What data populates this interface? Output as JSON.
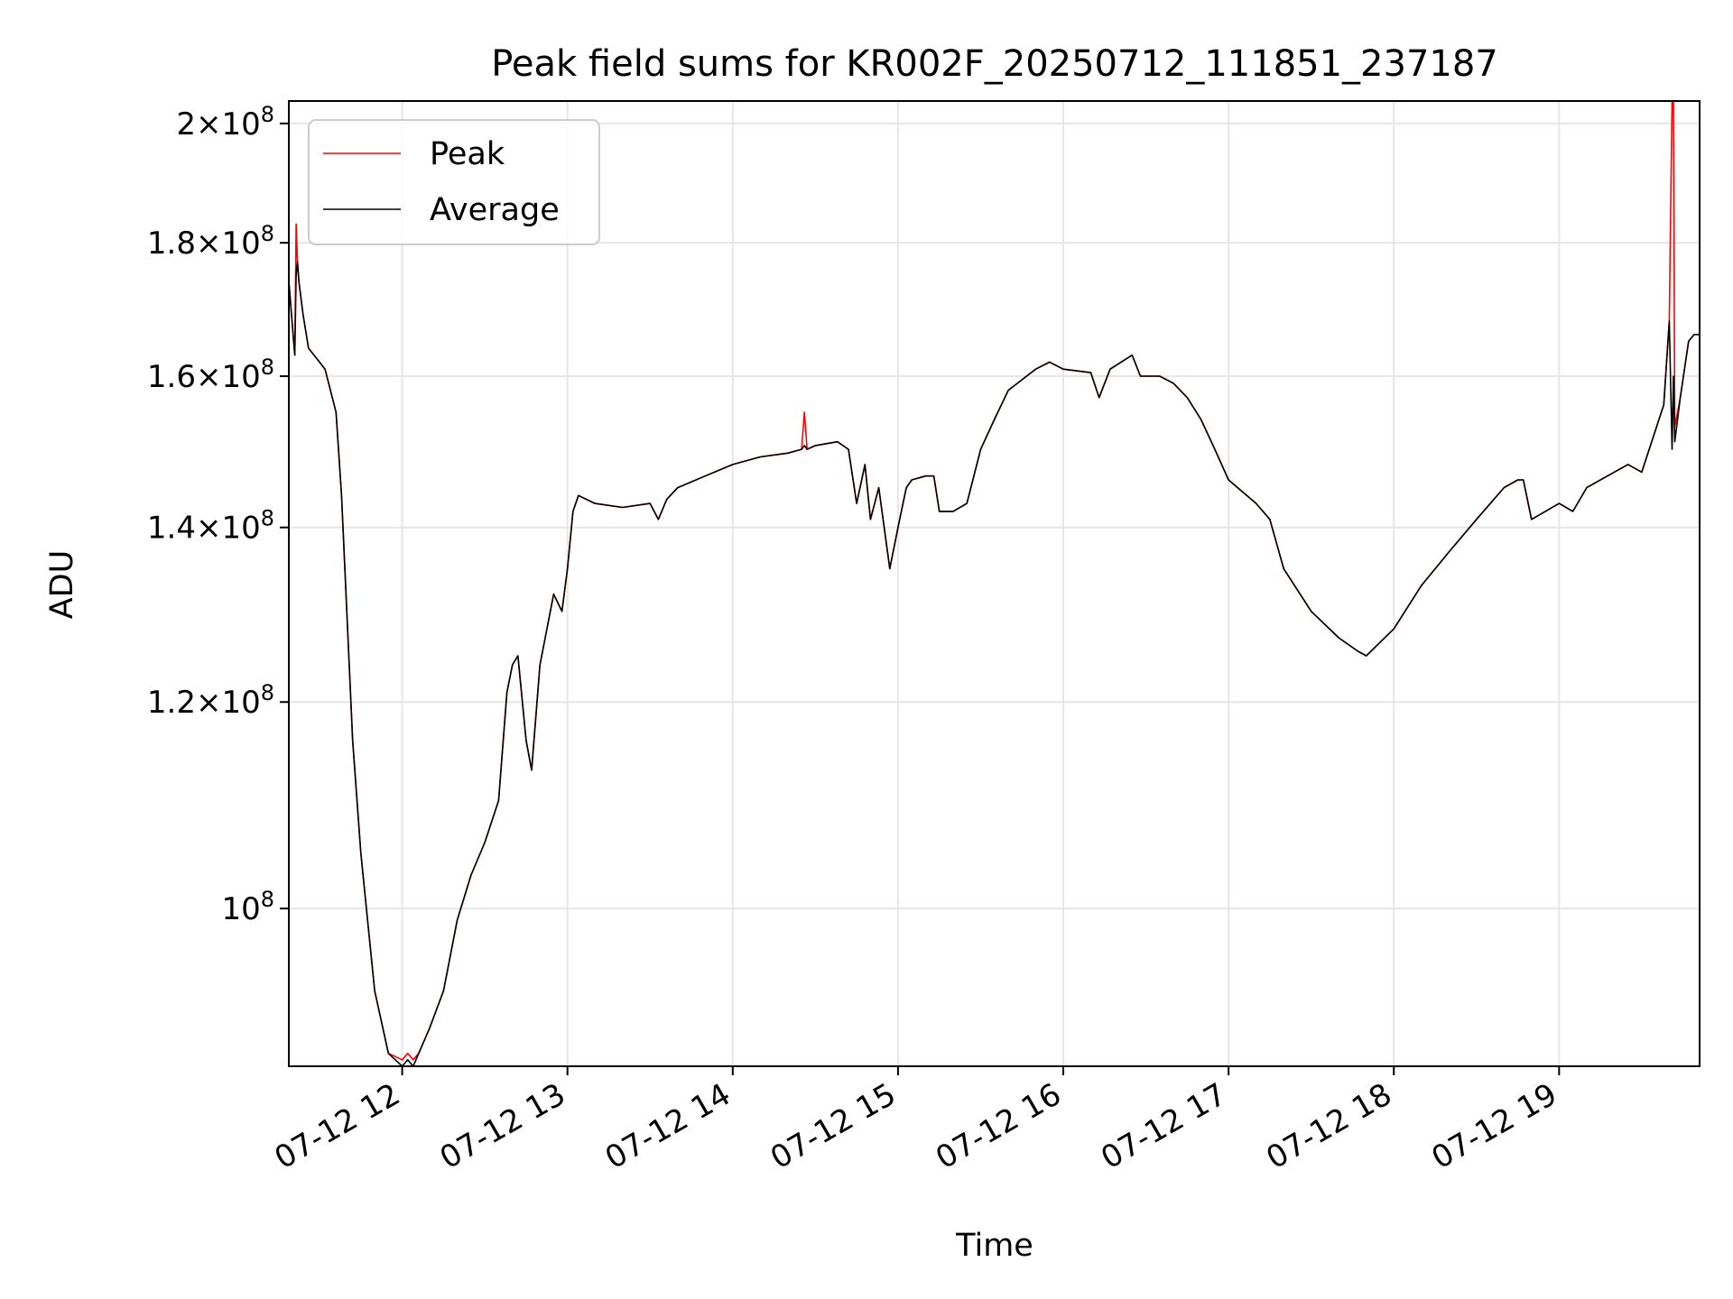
{
  "chart_data": {
    "type": "line",
    "title": "Peak field sums for KR002F_20250712_111851_237187",
    "xlabel": "Time",
    "ylabel": "ADU",
    "yscale": "log",
    "grid": true,
    "legend_placement": "upper-left",
    "xlim": [
      "2025-07-12T11:18:51",
      "2025-07-12T19:51:00"
    ],
    "ylim": [
      87000000,
      204000000
    ],
    "x_ticks": [
      {
        "value": "2025-07-12T12:00",
        "label": "07-12 12"
      },
      {
        "value": "2025-07-12T13:00",
        "label": "07-12 13"
      },
      {
        "value": "2025-07-12T14:00",
        "label": "07-12 14"
      },
      {
        "value": "2025-07-12T15:00",
        "label": "07-12 15"
      },
      {
        "value": "2025-07-12T16:00",
        "label": "07-12 16"
      },
      {
        "value": "2025-07-12T17:00",
        "label": "07-12 17"
      },
      {
        "value": "2025-07-12T18:00",
        "label": "07-12 18"
      },
      {
        "value": "2025-07-12T19:00",
        "label": "07-12 19"
      }
    ],
    "y_ticks": [
      {
        "value": 100000000,
        "mantissa": "",
        "exponent": "8"
      },
      {
        "value": 120000000,
        "mantissa": "1.2",
        "exponent": "8"
      },
      {
        "value": 140000000,
        "mantissa": "1.4",
        "exponent": "8"
      },
      {
        "value": 160000000,
        "mantissa": "1.6",
        "exponent": "8"
      },
      {
        "value": 180000000,
        "mantissa": "1.8",
        "exponent": "8"
      },
      {
        "value": 200000000,
        "mantissa": "2",
        "exponent": "8"
      }
    ],
    "series": [
      {
        "name": "Peak",
        "color": "#ff0000",
        "x": [
          "2025-07-12T11:18:51",
          "2025-07-12T11:20:00",
          "2025-07-12T11:21:00",
          "2025-07-12T11:21:30",
          "2025-07-12T11:22:00",
          "2025-07-12T11:22:30",
          "2025-07-12T11:24:00",
          "2025-07-12T11:26:00",
          "2025-07-12T11:30:00",
          "2025-07-12T11:32:00",
          "2025-07-12T11:36:00",
          "2025-07-12T11:38:00",
          "2025-07-12T11:42:00",
          "2025-07-12T11:45:00",
          "2025-07-12T11:50:00",
          "2025-07-12T11:55:00",
          "2025-07-12T12:00:00",
          "2025-07-12T12:02:00",
          "2025-07-12T12:04:00",
          "2025-07-12T12:06:00",
          "2025-07-12T12:10:00",
          "2025-07-12T12:15:00",
          "2025-07-12T12:20:00",
          "2025-07-12T12:25:00",
          "2025-07-12T12:30:00",
          "2025-07-12T12:35:00",
          "2025-07-12T12:38:00",
          "2025-07-12T12:40:00",
          "2025-07-12T12:42:00",
          "2025-07-12T12:45:00",
          "2025-07-12T12:47:00",
          "2025-07-12T12:50:00",
          "2025-07-12T12:55:00",
          "2025-07-12T12:58:00",
          "2025-07-12T13:00:00",
          "2025-07-12T13:02:00",
          "2025-07-12T13:04:00",
          "2025-07-12T13:10:00",
          "2025-07-12T13:20:00",
          "2025-07-12T13:30:00",
          "2025-07-12T13:33:00",
          "2025-07-12T13:36:00",
          "2025-07-12T13:40:00",
          "2025-07-12T13:50:00",
          "2025-07-12T14:00:00",
          "2025-07-12T14:10:00",
          "2025-07-12T14:20:00",
          "2025-07-12T14:25:00",
          "2025-07-12T14:26:00",
          "2025-07-12T14:27:00",
          "2025-07-12T14:30:00",
          "2025-07-12T14:38:00",
          "2025-07-12T14:42:00",
          "2025-07-12T14:45:00",
          "2025-07-12T14:48:00",
          "2025-07-12T14:50:00",
          "2025-07-12T14:53:00",
          "2025-07-12T14:57:00",
          "2025-07-12T15:00:00",
          "2025-07-12T15:03:00",
          "2025-07-12T15:05:00",
          "2025-07-12T15:10:00",
          "2025-07-12T15:13:00",
          "2025-07-12T15:15:00",
          "2025-07-12T15:20:00",
          "2025-07-12T15:25:00",
          "2025-07-12T15:30:00",
          "2025-07-12T15:35:00",
          "2025-07-12T15:40:00",
          "2025-07-12T15:50:00",
          "2025-07-12T15:55:00",
          "2025-07-12T16:00:00",
          "2025-07-12T16:10:00",
          "2025-07-12T16:13:00",
          "2025-07-12T16:17:00",
          "2025-07-12T16:25:00",
          "2025-07-12T16:28:00",
          "2025-07-12T16:35:00",
          "2025-07-12T16:40:00",
          "2025-07-12T16:45:00",
          "2025-07-12T16:50:00",
          "2025-07-12T16:55:00",
          "2025-07-12T17:00:00",
          "2025-07-12T17:10:00",
          "2025-07-12T17:15:00",
          "2025-07-12T17:20:00",
          "2025-07-12T17:30:00",
          "2025-07-12T17:40:00",
          "2025-07-12T17:47:00",
          "2025-07-12T17:50:00",
          "2025-07-12T18:00:00",
          "2025-07-12T18:10:00",
          "2025-07-12T18:20:00",
          "2025-07-12T18:30:00",
          "2025-07-12T18:40:00",
          "2025-07-12T18:45:00",
          "2025-07-12T18:47:00",
          "2025-07-12T18:50:00",
          "2025-07-12T19:00:00",
          "2025-07-12T19:05:00",
          "2025-07-12T19:10:00",
          "2025-07-12T19:20:00",
          "2025-07-12T19:25:00",
          "2025-07-12T19:30:00",
          "2025-07-12T19:38:00",
          "2025-07-12T19:40:00",
          "2025-07-12T19:41:00",
          "2025-07-12T19:41:30",
          "2025-07-12T19:42:00",
          "2025-07-12T19:44:00",
          "2025-07-12T19:47:00",
          "2025-07-12T19:49:00",
          "2025-07-12T19:51:00"
        ],
        "y": [
          174000000,
          168000000,
          163000000,
          183000000,
          177000000,
          174000000,
          169000000,
          164000000,
          162000000,
          161000000,
          155000000,
          144000000,
          116000000,
          105000000,
          93000000,
          88000000,
          87500000,
          88000000,
          87500000,
          88000000,
          90000000,
          93000000,
          99000000,
          103000000,
          106000000,
          110000000,
          121000000,
          124000000,
          125000000,
          116000000,
          113000000,
          124000000,
          132000000,
          130000000,
          135000000,
          142000000,
          144000000,
          143000000,
          142500000,
          143000000,
          141000000,
          143500000,
          145000000,
          146500000,
          148000000,
          149000000,
          149500000,
          150000000,
          155000000,
          150000000,
          150500000,
          151000000,
          150000000,
          143000000,
          148000000,
          141000000,
          145000000,
          135000000,
          140000000,
          145000000,
          146000000,
          146500000,
          146500000,
          142000000,
          142000000,
          143000000,
          150000000,
          154000000,
          158000000,
          161000000,
          162000000,
          161000000,
          160500000,
          157000000,
          161000000,
          163000000,
          160000000,
          160000000,
          159000000,
          157000000,
          154000000,
          150000000,
          146000000,
          143000000,
          141000000,
          135000000,
          130000000,
          127000000,
          125500000,
          125000000,
          128000000,
          133000000,
          137000000,
          141000000,
          145000000,
          146000000,
          146000000,
          141000000,
          143000000,
          142000000,
          145000000,
          147000000,
          148000000,
          147000000,
          156000000,
          168000000,
          207000000,
          210000000,
          153000000,
          157000000,
          165000000,
          166000000,
          166000000
        ]
      },
      {
        "name": "Average",
        "color": "#000000",
        "x": [
          "2025-07-12T11:18:51",
          "2025-07-12T11:20:00",
          "2025-07-12T11:21:00",
          "2025-07-12T11:21:30",
          "2025-07-12T11:22:00",
          "2025-07-12T11:22:30",
          "2025-07-12T11:24:00",
          "2025-07-12T11:26:00",
          "2025-07-12T11:30:00",
          "2025-07-12T11:32:00",
          "2025-07-12T11:36:00",
          "2025-07-12T11:38:00",
          "2025-07-12T11:42:00",
          "2025-07-12T11:45:00",
          "2025-07-12T11:50:00",
          "2025-07-12T11:55:00",
          "2025-07-12T12:00:00",
          "2025-07-12T12:02:00",
          "2025-07-12T12:04:00",
          "2025-07-12T12:06:00",
          "2025-07-12T12:10:00",
          "2025-07-12T12:15:00",
          "2025-07-12T12:20:00",
          "2025-07-12T12:25:00",
          "2025-07-12T12:30:00",
          "2025-07-12T12:35:00",
          "2025-07-12T12:38:00",
          "2025-07-12T12:40:00",
          "2025-07-12T12:42:00",
          "2025-07-12T12:45:00",
          "2025-07-12T12:47:00",
          "2025-07-12T12:50:00",
          "2025-07-12T12:55:00",
          "2025-07-12T12:58:00",
          "2025-07-12T13:00:00",
          "2025-07-12T13:02:00",
          "2025-07-12T13:04:00",
          "2025-07-12T13:10:00",
          "2025-07-12T13:20:00",
          "2025-07-12T13:30:00",
          "2025-07-12T13:33:00",
          "2025-07-12T13:36:00",
          "2025-07-12T13:40:00",
          "2025-07-12T13:50:00",
          "2025-07-12T14:00:00",
          "2025-07-12T14:10:00",
          "2025-07-12T14:20:00",
          "2025-07-12T14:25:00",
          "2025-07-12T14:26:00",
          "2025-07-12T14:27:00",
          "2025-07-12T14:30:00",
          "2025-07-12T14:38:00",
          "2025-07-12T14:42:00",
          "2025-07-12T14:45:00",
          "2025-07-12T14:48:00",
          "2025-07-12T14:50:00",
          "2025-07-12T14:53:00",
          "2025-07-12T14:57:00",
          "2025-07-12T15:00:00",
          "2025-07-12T15:03:00",
          "2025-07-12T15:05:00",
          "2025-07-12T15:10:00",
          "2025-07-12T15:13:00",
          "2025-07-12T15:15:00",
          "2025-07-12T15:20:00",
          "2025-07-12T15:25:00",
          "2025-07-12T15:30:00",
          "2025-07-12T15:35:00",
          "2025-07-12T15:40:00",
          "2025-07-12T15:50:00",
          "2025-07-12T15:55:00",
          "2025-07-12T16:00:00",
          "2025-07-12T16:10:00",
          "2025-07-12T16:13:00",
          "2025-07-12T16:17:00",
          "2025-07-12T16:25:00",
          "2025-07-12T16:28:00",
          "2025-07-12T16:35:00",
          "2025-07-12T16:40:00",
          "2025-07-12T16:45:00",
          "2025-07-12T16:50:00",
          "2025-07-12T16:55:00",
          "2025-07-12T17:00:00",
          "2025-07-12T17:10:00",
          "2025-07-12T17:15:00",
          "2025-07-12T17:20:00",
          "2025-07-12T17:30:00",
          "2025-07-12T17:40:00",
          "2025-07-12T17:47:00",
          "2025-07-12T17:50:00",
          "2025-07-12T18:00:00",
          "2025-07-12T18:10:00",
          "2025-07-12T18:20:00",
          "2025-07-12T18:30:00",
          "2025-07-12T18:40:00",
          "2025-07-12T18:45:00",
          "2025-07-12T18:47:00",
          "2025-07-12T18:50:00",
          "2025-07-12T19:00:00",
          "2025-07-12T19:05:00",
          "2025-07-12T19:10:00",
          "2025-07-12T19:20:00",
          "2025-07-12T19:25:00",
          "2025-07-12T19:30:00",
          "2025-07-12T19:38:00",
          "2025-07-12T19:40:00",
          "2025-07-12T19:41:00",
          "2025-07-12T19:41:30",
          "2025-07-12T19:42:00",
          "2025-07-12T19:44:00",
          "2025-07-12T19:47:00",
          "2025-07-12T19:49:00",
          "2025-07-12T19:51:00"
        ],
        "y": [
          174000000,
          168000000,
          163000000,
          175000000,
          177000000,
          174000000,
          169000000,
          164000000,
          162000000,
          161000000,
          155000000,
          144000000,
          116000000,
          105000000,
          93000000,
          88000000,
          87000000,
          87500000,
          87000000,
          88000000,
          90000000,
          93000000,
          99000000,
          103000000,
          106000000,
          110000000,
          121000000,
          124000000,
          125000000,
          116000000,
          113000000,
          124000000,
          132000000,
          130000000,
          135000000,
          142000000,
          144000000,
          143000000,
          142500000,
          143000000,
          141000000,
          143500000,
          145000000,
          146500000,
          148000000,
          149000000,
          149500000,
          150000000,
          150500000,
          150000000,
          150500000,
          151000000,
          150000000,
          143000000,
          148000000,
          141000000,
          145000000,
          135000000,
          140000000,
          145000000,
          146000000,
          146500000,
          146500000,
          142000000,
          142000000,
          143000000,
          150000000,
          154000000,
          158000000,
          161000000,
          162000000,
          161000000,
          160500000,
          157000000,
          161000000,
          163000000,
          160000000,
          160000000,
          159000000,
          157000000,
          154000000,
          150000000,
          146000000,
          143000000,
          141000000,
          135000000,
          130000000,
          127000000,
          125500000,
          125000000,
          128000000,
          133000000,
          137000000,
          141000000,
          145000000,
          146000000,
          146000000,
          141000000,
          143000000,
          142000000,
          145000000,
          147000000,
          148000000,
          147000000,
          156000000,
          168000000,
          150000000,
          160000000,
          151000000,
          157000000,
          165000000,
          166000000,
          166000000
        ]
      }
    ]
  }
}
